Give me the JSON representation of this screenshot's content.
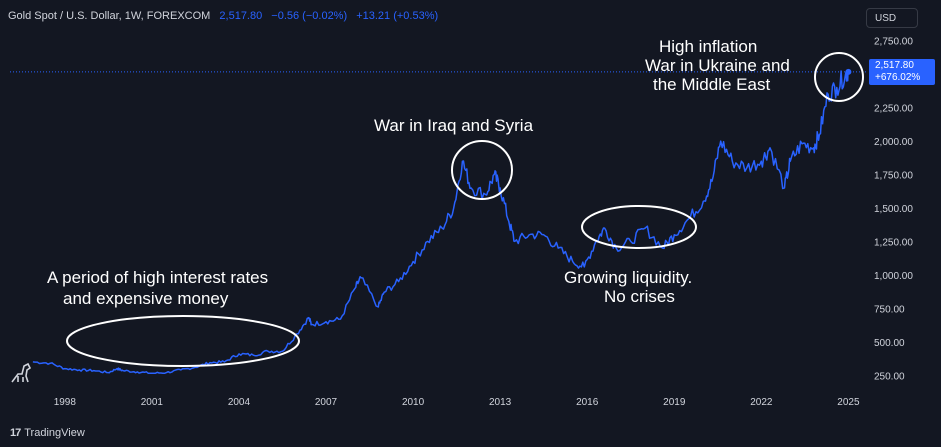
{
  "header": {
    "title": "Gold Spot / U.S. Dollar, 1W, FOREXCOM",
    "price": "2,517.80",
    "change": "−0.56 (−0.02%)",
    "change2": "+13.21 (+0.53%)"
  },
  "currency": "USD",
  "price_tag": {
    "price": "2,517.80",
    "pct": "+676.02%"
  },
  "footer": {
    "logo": "17",
    "brand": "TradingView"
  },
  "colors": {
    "line": "#2962ff",
    "bg": "#131722",
    "text": "#d1d4dc",
    "annotation": "#ffffff"
  },
  "chart_data": {
    "type": "line",
    "title": "Gold Spot / U.S. Dollar, 1W, FOREXCOM",
    "xlabel": "",
    "ylabel": "",
    "xlim": [
      1996.8,
      2025.4
    ],
    "ylim": [
      140,
      2830
    ],
    "x_ticks": [
      "1998",
      "2001",
      "2004",
      "2007",
      "2010",
      "2013",
      "2016",
      "2019",
      "2022",
      "2025"
    ],
    "y_ticks": [
      "250.00",
      "500.00",
      "750.00",
      "1,000.00",
      "1,250.00",
      "1,500.00",
      "1,750.00",
      "2,000.00",
      "2,250.00",
      "2,750.00"
    ],
    "series": [
      {
        "name": "Gold Spot / U.S. Dollar",
        "x": [
          1996.9,
          1997.5,
          1998.0,
          1998.5,
          1999.0,
          1999.5,
          1999.8,
          2000.0,
          2000.5,
          2001.0,
          2001.5,
          2002.0,
          2002.5,
          2003.0,
          2003.5,
          2004.0,
          2004.5,
          2005.0,
          2005.5,
          2006.0,
          2006.4,
          2006.5,
          2007.0,
          2007.5,
          2008.0,
          2008.2,
          2008.8,
          2009.0,
          2009.5,
          2010.0,
          2010.5,
          2011.0,
          2011.4,
          2011.7,
          2012.0,
          2012.5,
          2012.8,
          2013.0,
          2013.3,
          2013.5,
          2014.0,
          2014.5,
          2015.0,
          2015.5,
          2015.9,
          2016.3,
          2016.6,
          2017.0,
          2017.5,
          2018.0,
          2018.6,
          2019.0,
          2019.5,
          2020.0,
          2020.3,
          2020.6,
          2021.0,
          2021.5,
          2022.0,
          2022.3,
          2022.8,
          2023.0,
          2023.4,
          2023.8,
          2024.0,
          2024.3,
          2024.6,
          2024.9,
          2025.0
        ],
        "values": [
          350,
          340,
          300,
          290,
          285,
          270,
          300,
          285,
          275,
          265,
          270,
          290,
          310,
          345,
          350,
          410,
          400,
          430,
          430,
          560,
          680,
          630,
          650,
          670,
          900,
          980,
          760,
          870,
          950,
          1100,
          1250,
          1350,
          1500,
          1850,
          1650,
          1600,
          1750,
          1650,
          1400,
          1250,
          1300,
          1300,
          1200,
          1100,
          1060,
          1250,
          1350,
          1200,
          1250,
          1350,
          1200,
          1300,
          1420,
          1550,
          1700,
          2000,
          1850,
          1800,
          1850,
          1950,
          1650,
          1850,
          1980,
          1950,
          2050,
          2350,
          2400,
          2500,
          2517
        ]
      }
    ],
    "annotations": [
      {
        "text": [
          "A period of high interest rates",
          "and expensive money"
        ]
      },
      {
        "text": [
          "War in Iraq and Syria"
        ]
      },
      {
        "text": [
          "Growing liquidity.",
          "No crises"
        ]
      },
      {
        "text": [
          "High inflation",
          "War in Ukraine and",
          "the Middle East"
        ]
      }
    ]
  }
}
